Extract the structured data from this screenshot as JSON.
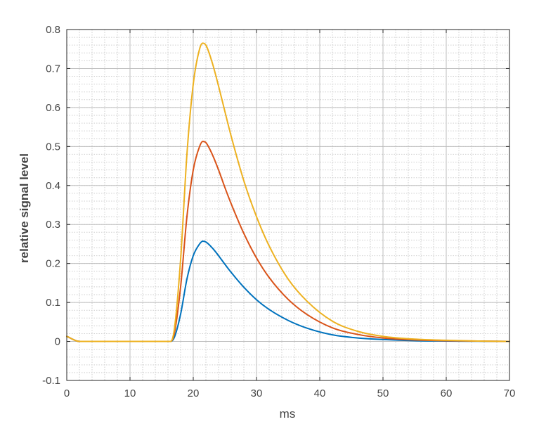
{
  "chart_data": {
    "type": "line",
    "title": "",
    "xlabel": "ms",
    "ylabel": "relative signal level",
    "xlim": [
      0,
      70
    ],
    "ylim": [
      -0.1,
      0.8
    ],
    "xticks": [
      0,
      10,
      20,
      30,
      40,
      50,
      60,
      70
    ],
    "yticks": [
      -0.1,
      0,
      0.1,
      0.2,
      0.3,
      0.4,
      0.5,
      0.6,
      0.7,
      0.8
    ],
    "xtick_labels": [
      "0",
      "10",
      "20",
      "30",
      "40",
      "50",
      "60",
      "70"
    ],
    "ytick_labels": [
      "-0.1",
      "0",
      "0.1",
      "0.2",
      "0.3",
      "0.4",
      "0.5",
      "0.6",
      "0.7",
      "0.8"
    ],
    "grid": true,
    "minor_grid": true,
    "legend": "none",
    "series": [
      {
        "color": "#0072BD",
        "x": [
          0,
          2,
          16.4,
          17,
          18,
          19,
          20,
          21,
          21.5,
          22,
          23,
          24,
          25,
          26,
          28,
          30,
          32,
          35,
          38,
          42,
          46,
          50,
          55,
          60,
          65,
          70
        ],
        "y": [
          0.013,
          0,
          0,
          0.01,
          0.07,
          0.16,
          0.22,
          0.25,
          0.257,
          0.255,
          0.24,
          0.22,
          0.198,
          0.177,
          0.139,
          0.107,
          0.082,
          0.054,
          0.034,
          0.017,
          0.009,
          0.005,
          0.002,
          0.001,
          0.0005,
          0
        ]
      },
      {
        "color": "#D95319",
        "x": [
          0,
          2,
          16.4,
          17,
          18,
          19,
          20,
          21,
          21.5,
          22,
          23,
          24,
          25,
          26,
          28,
          30,
          32,
          35,
          38,
          42,
          46,
          50,
          55,
          60,
          65,
          70
        ],
        "y": [
          0.013,
          0,
          0,
          0.02,
          0.14,
          0.32,
          0.44,
          0.5,
          0.513,
          0.51,
          0.48,
          0.44,
          0.395,
          0.353,
          0.277,
          0.214,
          0.164,
          0.108,
          0.069,
          0.035,
          0.018,
          0.009,
          0.004,
          0.002,
          0.001,
          0
        ]
      },
      {
        "color": "#EDB120",
        "x": [
          0,
          2,
          16.4,
          17,
          18,
          19,
          20,
          21,
          21.5,
          22,
          23,
          24,
          25,
          26,
          28,
          30,
          32,
          35,
          38,
          42,
          46,
          50,
          55,
          60,
          65,
          70
        ],
        "y": [
          0.013,
          0,
          0,
          0.03,
          0.21,
          0.48,
          0.66,
          0.75,
          0.765,
          0.76,
          0.715,
          0.655,
          0.59,
          0.526,
          0.412,
          0.32,
          0.245,
          0.16,
          0.103,
          0.052,
          0.026,
          0.013,
          0.006,
          0.003,
          0.001,
          0
        ]
      }
    ]
  }
}
